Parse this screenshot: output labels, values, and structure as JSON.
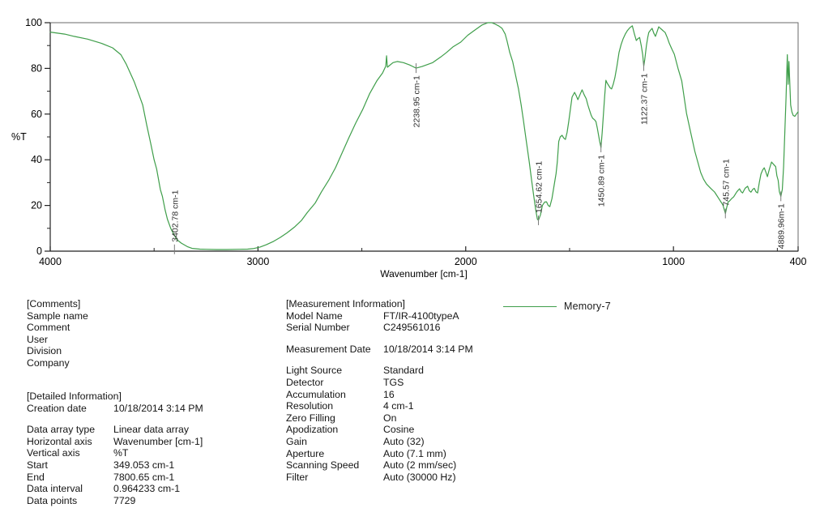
{
  "chart_data": {
    "type": "line",
    "title": "",
    "xlabel": "Wavenumber [cm-1]",
    "ylabel": "%T",
    "xlim": [
      4000,
      400
    ],
    "ylim": [
      0,
      100
    ],
    "x_reversed": true,
    "grid": false,
    "legend_position": "below-right",
    "x_ticks": [
      {
        "value": 4000,
        "label": "4000"
      },
      {
        "value": 3000,
        "label": "3000"
      },
      {
        "value": 2000,
        "label": "2000"
      },
      {
        "value": 1000,
        "label": "1000"
      },
      {
        "value": 400,
        "label": "400"
      }
    ],
    "x_minor_ticks": [
      3500,
      2500,
      1500,
      500
    ],
    "y_ticks": [
      {
        "value": 100,
        "label": "100"
      },
      {
        "value": 80,
        "label": "80"
      },
      {
        "value": 60,
        "label": "60"
      },
      {
        "value": 40,
        "label": "40"
      },
      {
        "value": 20,
        "label": "20"
      },
      {
        "value": 0,
        "label": "0"
      }
    ],
    "y_minor_ticks": [
      10,
      30,
      50,
      70,
      90
    ],
    "series": [
      {
        "name": "Memory-7",
        "color": "#3f9e4a",
        "points": [
          [
            4000,
            95.9
          ],
          [
            3930,
            95.0
          ],
          [
            3885,
            94.0
          ],
          [
            3820,
            92.8
          ],
          [
            3754,
            91.0
          ],
          [
            3700,
            89.0
          ],
          [
            3660,
            86.0
          ],
          [
            3635,
            82.0
          ],
          [
            3610,
            77.0
          ],
          [
            3595,
            74.0
          ],
          [
            3575,
            69.0
          ],
          [
            3555,
            64.0
          ],
          [
            3535,
            55.0
          ],
          [
            3516,
            47.0
          ],
          [
            3500,
            40.0
          ],
          [
            3488,
            36.0
          ],
          [
            3470,
            27.0
          ],
          [
            3460,
            24.0
          ],
          [
            3447,
            18.0
          ],
          [
            3436,
            14.0
          ],
          [
            3420,
            10.0
          ],
          [
            3409,
            8.0
          ],
          [
            3390,
            5.0
          ],
          [
            3369,
            3.5
          ],
          [
            3340,
            2.0
          ],
          [
            3317,
            1.2
          ],
          [
            3280,
            0.9
          ],
          [
            3250,
            0.8
          ],
          [
            3200,
            0.7
          ],
          [
            3150,
            0.7
          ],
          [
            3091,
            0.8
          ],
          [
            3050,
            0.9
          ],
          [
            3024,
            1.1
          ],
          [
            2990,
            1.8
          ],
          [
            2960,
            2.8
          ],
          [
            2925,
            4.3
          ],
          [
            2893,
            6.0
          ],
          [
            2860,
            8.0
          ],
          [
            2825,
            10.5
          ],
          [
            2790,
            13.5
          ],
          [
            2762,
            17.0
          ],
          [
            2725,
            21.0
          ],
          [
            2694,
            26.0
          ],
          [
            2660,
            31.0
          ],
          [
            2627,
            36.5
          ],
          [
            2595,
            43.0
          ],
          [
            2563,
            49.5
          ],
          [
            2530,
            56.0
          ],
          [
            2496,
            62.0
          ],
          [
            2462,
            69.0
          ],
          [
            2428,
            74.5
          ],
          [
            2400,
            78.0
          ],
          [
            2385,
            81.0
          ],
          [
            2381,
            85.5
          ],
          [
            2377,
            80.5
          ],
          [
            2350,
            82.5
          ],
          [
            2330,
            83.0
          ],
          [
            2300,
            82.5
          ],
          [
            2270,
            81.5
          ],
          [
            2239,
            80.1
          ],
          [
            2210,
            80.8
          ],
          [
            2159,
            82.5
          ],
          [
            2120,
            85.0
          ],
          [
            2092,
            87.0
          ],
          [
            2060,
            89.5
          ],
          [
            2024,
            91.5
          ],
          [
            1990,
            94.5
          ],
          [
            1960,
            96.5
          ],
          [
            1921,
            99.0
          ],
          [
            1893,
            100.0
          ],
          [
            1875,
            100.0
          ],
          [
            1861,
            99.5
          ],
          [
            1840,
            98.5
          ],
          [
            1825,
            97.5
          ],
          [
            1810,
            95.0
          ],
          [
            1801,
            92.0
          ],
          [
            1788,
            87.0
          ],
          [
            1774,
            83.0
          ],
          [
            1760,
            77.0
          ],
          [
            1746,
            71.0
          ],
          [
            1733,
            64.0
          ],
          [
            1722,
            57.0
          ],
          [
            1708,
            48.0
          ],
          [
            1694,
            39.0
          ],
          [
            1683,
            31.0
          ],
          [
            1674,
            25.0
          ],
          [
            1663,
            18.0
          ],
          [
            1655,
            14.0
          ],
          [
            1650,
            13.5
          ],
          [
            1640,
            16.0
          ],
          [
            1631,
            20.0
          ],
          [
            1620,
            21.5
          ],
          [
            1611,
            21.6
          ],
          [
            1603,
            20.0
          ],
          [
            1595,
            19.5
          ],
          [
            1585,
            23.0
          ],
          [
            1575,
            28.4
          ],
          [
            1565,
            34.0
          ],
          [
            1559,
            39.0
          ],
          [
            1552,
            48.0
          ],
          [
            1545,
            50.0
          ],
          [
            1536,
            50.7
          ],
          [
            1528,
            49.5
          ],
          [
            1520,
            48.9
          ],
          [
            1512,
            52.0
          ],
          [
            1504,
            56.7
          ],
          [
            1495,
            63.0
          ],
          [
            1488,
            67.4
          ],
          [
            1476,
            69.5
          ],
          [
            1468,
            68.0
          ],
          [
            1460,
            66.3
          ],
          [
            1450,
            68.5
          ],
          [
            1440,
            70.6
          ],
          [
            1430,
            68.5
          ],
          [
            1420,
            66.7
          ],
          [
            1412,
            64.0
          ],
          [
            1405,
            62.0
          ],
          [
            1396,
            59.5
          ],
          [
            1389,
            58.2
          ],
          [
            1380,
            57.5
          ],
          [
            1373,
            56.7
          ],
          [
            1367,
            54.0
          ],
          [
            1361,
            51.0
          ],
          [
            1355,
            48.0
          ],
          [
            1349,
            45.4
          ],
          [
            1343,
            52.0
          ],
          [
            1337,
            60.3
          ],
          [
            1331,
            68.0
          ],
          [
            1325,
            74.8
          ],
          [
            1319,
            73.5
          ],
          [
            1313,
            72.7
          ],
          [
            1305,
            71.5
          ],
          [
            1298,
            71.0
          ],
          [
            1290,
            73.0
          ],
          [
            1282,
            76.0
          ],
          [
            1272,
            81.0
          ],
          [
            1262,
            87.0
          ],
          [
            1252,
            90.5
          ],
          [
            1242,
            93.0
          ],
          [
            1232,
            95.0
          ],
          [
            1222,
            96.5
          ],
          [
            1210,
            97.8
          ],
          [
            1198,
            98.6
          ],
          [
            1188,
            95.0
          ],
          [
            1179,
            92.2
          ],
          [
            1171,
            93.0
          ],
          [
            1163,
            93.5
          ],
          [
            1155,
            90.0
          ],
          [
            1148,
            86.0
          ],
          [
            1143,
            81.0
          ],
          [
            1138,
            84.0
          ],
          [
            1130,
            90.0
          ],
          [
            1124,
            93.5
          ],
          [
            1119,
            95.7
          ],
          [
            1110,
            96.8
          ],
          [
            1103,
            97.5
          ],
          [
            1095,
            95.5
          ],
          [
            1087,
            94.0
          ],
          [
            1079,
            96.0
          ],
          [
            1071,
            98.2
          ],
          [
            1063,
            97.5
          ],
          [
            1056,
            97.0
          ],
          [
            1048,
            96.3
          ],
          [
            1040,
            95.7
          ],
          [
            1030,
            93.5
          ],
          [
            1020,
            91.0
          ],
          [
            1008,
            88.5
          ],
          [
            996,
            86.2
          ],
          [
            978,
            80.0
          ],
          [
            960,
            74.5
          ],
          [
            948,
            67.0
          ],
          [
            937,
            60.3
          ],
          [
            917,
            52.0
          ],
          [
            897,
            43.6
          ],
          [
            883,
            39.0
          ],
          [
            869,
            34.4
          ],
          [
            855,
            31.5
          ],
          [
            841,
            29.4
          ],
          [
            821,
            27.5
          ],
          [
            802,
            25.9
          ],
          [
            782,
            23.0
          ],
          [
            762,
            20.2
          ],
          [
            755,
            18.0
          ],
          [
            750,
            16.5
          ],
          [
            744,
            19.0
          ],
          [
            737,
            21.5
          ],
          [
            730,
            22.0
          ],
          [
            720,
            23.0
          ],
          [
            710,
            23.8
          ],
          [
            695,
            26.0
          ],
          [
            682,
            27.3
          ],
          [
            674,
            26.0
          ],
          [
            667,
            25.5
          ],
          [
            655,
            27.5
          ],
          [
            643,
            28.4
          ],
          [
            635,
            26.5
          ],
          [
            627,
            25.8
          ],
          [
            619,
            27.0
          ],
          [
            611,
            27.5
          ],
          [
            603,
            26.0
          ],
          [
            595,
            25.5
          ],
          [
            587,
            30.0
          ],
          [
            579,
            33.7
          ],
          [
            571,
            35.5
          ],
          [
            563,
            36.5
          ],
          [
            555,
            34.5
          ],
          [
            548,
            32.6
          ],
          [
            538,
            36.0
          ],
          [
            528,
            39.0
          ],
          [
            518,
            38.0
          ],
          [
            508,
            37.0
          ],
          [
            502,
            33.0
          ],
          [
            496,
            31.0
          ],
          [
            490,
            26.0
          ],
          [
            483,
            24.0
          ],
          [
            476,
            27.0
          ],
          [
            470,
            37.0
          ],
          [
            464,
            52.0
          ],
          [
            458,
            67.0
          ],
          [
            452,
            86.0
          ],
          [
            448,
            73.0
          ],
          [
            444,
            83.0
          ],
          [
            440,
            74.0
          ],
          [
            436,
            64.0
          ],
          [
            430,
            61.0
          ],
          [
            424,
            59.5
          ],
          [
            416,
            59.0
          ],
          [
            408,
            60.0
          ],
          [
            400,
            61.0
          ]
        ]
      }
    ],
    "peak_labels": [
      {
        "text": "3402.78 cm-1",
        "attach_wn": 3402,
        "attach_t": 0.8,
        "side": "above"
      },
      {
        "text": "2238.95 cm-1",
        "attach_wn": 2239,
        "attach_t": 80.1,
        "side": "below"
      },
      {
        "text": "1654.62 cm-1",
        "attach_wn": 1650,
        "attach_t": 13.5,
        "side": "above"
      },
      {
        "text": "1450.89 cm-1",
        "attach_wn": 1349,
        "attach_t": 45.4,
        "side": "below"
      },
      {
        "text": "1122.37 cm-1",
        "attach_wn": 1143,
        "attach_t": 81.0,
        "side": "below"
      },
      {
        "text": "745.57 cm-1",
        "attach_wn": 750,
        "attach_t": 16.5,
        "side": "above"
      },
      {
        "text": "4889.96m-1",
        "attach_wn": 483,
        "attach_t": 24.0,
        "side": "below"
      }
    ]
  },
  "legend": {
    "label": "Memory-7",
    "line_color": "#3f9e4a"
  },
  "info_blocks": {
    "comments": {
      "header": "[Comments]",
      "rows": [
        {
          "label": "Sample name"
        },
        {
          "label": "Comment"
        },
        {
          "label": "User"
        },
        {
          "label": "Division"
        },
        {
          "label": "Company"
        }
      ]
    },
    "detailed": {
      "header": "[Detailed Information]",
      "rows": [
        {
          "label": "Creation date",
          "value": "10/18/2014 3:14 PM"
        },
        {
          "spacer": true
        },
        {
          "label": "Data array type",
          "value": "Linear data array"
        },
        {
          "label": "Horizontal axis",
          "value": "Wavenumber [cm-1]"
        },
        {
          "label": "Vertical axis",
          "value": "%T"
        },
        {
          "label": "Start",
          "value": "349.053 cm-1"
        },
        {
          "label": "End",
          "value": "7800.65 cm-1"
        },
        {
          "label": "Data interval",
          "value": "0.964233 cm-1"
        },
        {
          "label": "Data points",
          "value": "7729"
        }
      ]
    },
    "measurement": {
      "header": "[Measurement Information]",
      "rows": [
        {
          "label": "Model Name",
          "value": "FT/IR-4100typeA"
        },
        {
          "label": "Serial Number",
          "value": "C249561016"
        },
        {
          "spacer": true
        },
        {
          "label": "Measurement Date",
          "value": "10/18/2014 3:14 PM"
        },
        {
          "spacer": true
        },
        {
          "label": "Light Source",
          "value": "Standard"
        },
        {
          "label": "Detector",
          "value": "TGS"
        },
        {
          "label": "Accumulation",
          "value": "16"
        },
        {
          "label": "Resolution",
          "value": "4 cm-1"
        },
        {
          "label": "Zero Filling",
          "value": "On"
        },
        {
          "label": "Apodization",
          "value": "Cosine"
        },
        {
          "label": "Gain",
          "value": "Auto (32)"
        },
        {
          "label": "Aperture",
          "value": "Auto (7.1 mm)"
        },
        {
          "label": "Scanning Speed",
          "value": "Auto (2 mm/sec)"
        },
        {
          "label": "Filter",
          "value": "Auto (30000 Hz)"
        }
      ]
    }
  }
}
